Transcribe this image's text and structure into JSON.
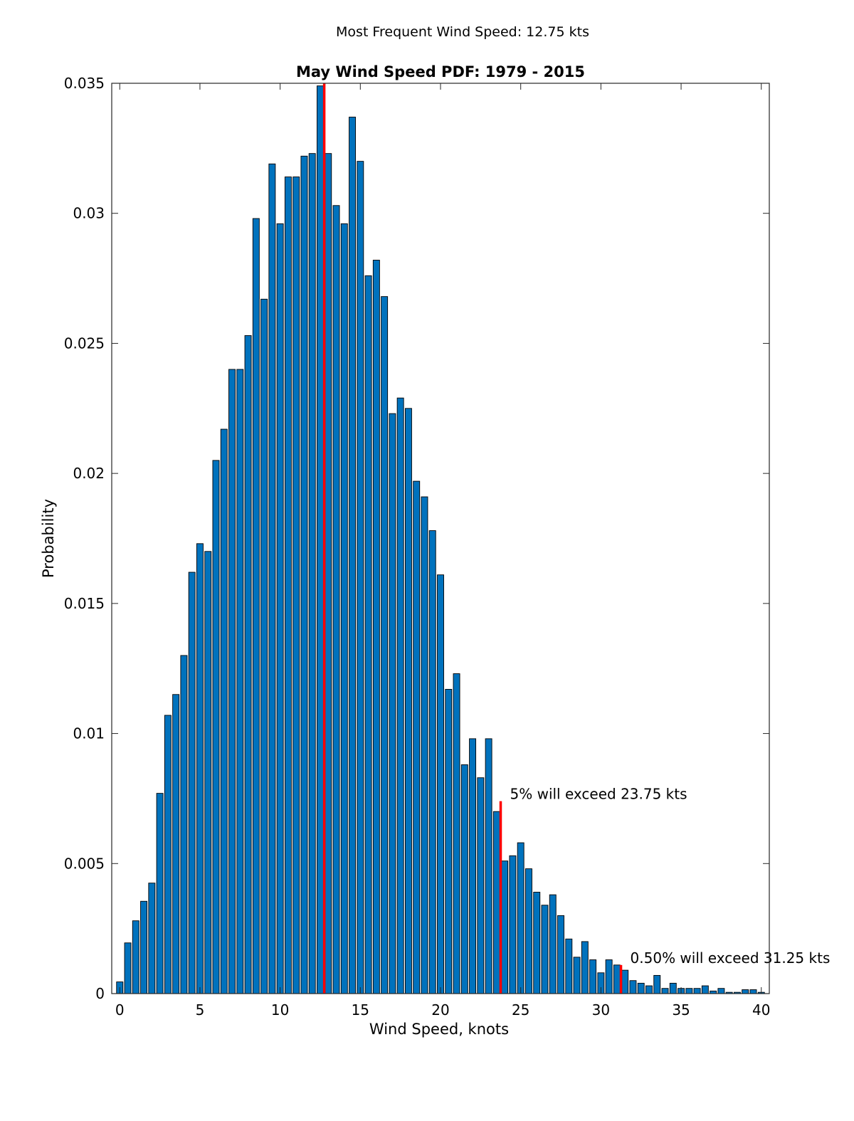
{
  "chart_data": {
    "type": "bar",
    "supertitle": "Most Frequent Wind Speed: 12.75 kts",
    "title": "May Wind Speed PDF: 1979 - 2015",
    "xlabel": "Wind Speed, knots",
    "ylabel": "Probability",
    "xlim": [
      -0.5,
      40.5
    ],
    "ylim": [
      0,
      0.035
    ],
    "xticks": [
      0,
      5,
      10,
      15,
      20,
      25,
      30,
      35,
      40
    ],
    "xtick_labels": [
      "0",
      "5",
      "10",
      "15",
      "20",
      "25",
      "30",
      "35",
      "40"
    ],
    "yticks": [
      0,
      0.005,
      0.01,
      0.015,
      0.02,
      0.025,
      0.03,
      0.035
    ],
    "ytick_labels": [
      "0",
      "0.005",
      "0.01",
      "0.015",
      "0.02",
      "0.025",
      "0.03",
      "0.035"
    ],
    "bin_width": 0.5,
    "x": [
      0,
      0.5,
      1,
      1.5,
      2,
      2.5,
      3,
      3.5,
      4,
      4.5,
      5,
      5.5,
      6,
      6.5,
      7,
      7.5,
      8,
      8.5,
      9,
      9.5,
      10,
      10.5,
      11,
      11.5,
      12,
      12.5,
      13,
      13.5,
      14,
      14.5,
      15,
      15.5,
      16,
      16.5,
      17,
      17.5,
      18,
      18.5,
      19,
      19.5,
      20,
      20.5,
      21,
      21.5,
      22,
      22.5,
      23,
      23.5,
      24,
      24.5,
      25,
      25.5,
      26,
      26.5,
      27,
      27.5,
      28,
      28.5,
      29,
      29.5,
      30,
      30.5,
      31,
      31.5,
      32,
      32.5,
      33,
      33.5,
      34,
      34.5,
      35,
      35.5,
      36,
      36.5,
      37,
      37.5,
      38,
      38.5,
      39,
      39.5,
      40
    ],
    "values": [
      0.00045,
      0.00195,
      0.0028,
      0.00355,
      0.00425,
      0.0077,
      0.0107,
      0.0115,
      0.013,
      0.0162,
      0.0173,
      0.017,
      0.0205,
      0.0217,
      0.024,
      0.024,
      0.0253,
      0.0298,
      0.0267,
      0.0319,
      0.0296,
      0.0314,
      0.0314,
      0.0322,
      0.0323,
      0.0349,
      0.0323,
      0.0303,
      0.0296,
      0.0337,
      0.032,
      0.0276,
      0.0282,
      0.0268,
      0.0223,
      0.0229,
      0.0225,
      0.0197,
      0.0191,
      0.0178,
      0.0161,
      0.0117,
      0.0123,
      0.0088,
      0.0098,
      0.0083,
      0.0098,
      0.007,
      0.0051,
      0.0053,
      0.0058,
      0.0048,
      0.0039,
      0.0034,
      0.0038,
      0.003,
      0.0021,
      0.0014,
      0.002,
      0.0013,
      0.0008,
      0.0013,
      0.0011,
      0.0009,
      0.0005,
      0.0004,
      0.0003,
      0.0007,
      0.0002,
      0.0004,
      0.0002,
      0.0002,
      0.0002,
      0.0003,
      0.0001,
      0.0002,
      5e-05,
      5e-05,
      0.00015,
      0.00015,
      5e-05
    ],
    "bar_color": "#0072BD",
    "marker_color": "#FF0000",
    "markers": [
      {
        "x": 12.75,
        "y": 0.035,
        "label": ""
      },
      {
        "x": 23.75,
        "y": 0.0074,
        "label": "5% will exceed 23.75 kts"
      },
      {
        "x": 31.25,
        "y": 0.0011,
        "label": "0.50% will exceed 31.25 kts"
      }
    ],
    "grid": false,
    "legend": "none"
  }
}
